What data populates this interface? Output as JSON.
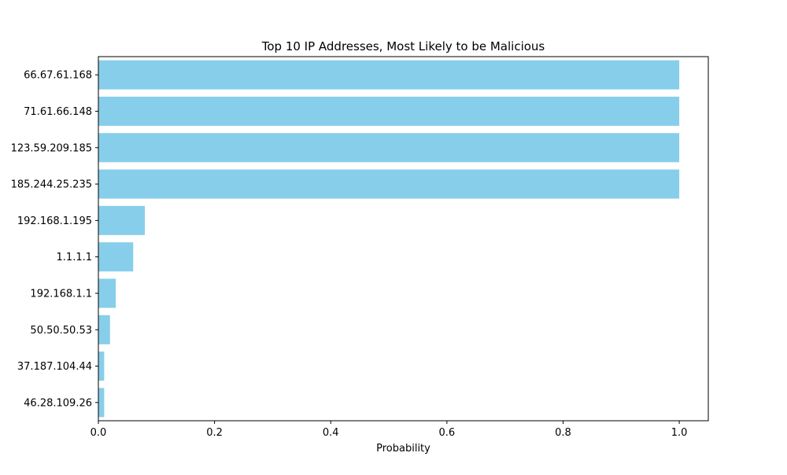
{
  "chart_data": {
    "type": "bar",
    "orientation": "horizontal",
    "title": "Top 10 IP Addresses, Most Likely to be Malicious",
    "xlabel": "Probability",
    "ylabel": "",
    "xlim": [
      0.0,
      1.05
    ],
    "xticks": [
      "0.0",
      "0.2",
      "0.4",
      "0.6",
      "0.8",
      "1.0"
    ],
    "grid": false,
    "legend": "none",
    "bar_color": "#87ceeb",
    "categories": [
      "66.67.61.168",
      "71.61.66.148",
      "123.59.209.185",
      "185.244.25.235",
      "192.168.1.195",
      "1.1.1.1",
      "192.168.1.1",
      "50.50.50.53",
      "37.187.104.44",
      "46.28.109.26"
    ],
    "values": [
      1.0,
      1.0,
      1.0,
      1.0,
      0.08,
      0.06,
      0.03,
      0.02,
      0.01,
      0.01
    ]
  }
}
